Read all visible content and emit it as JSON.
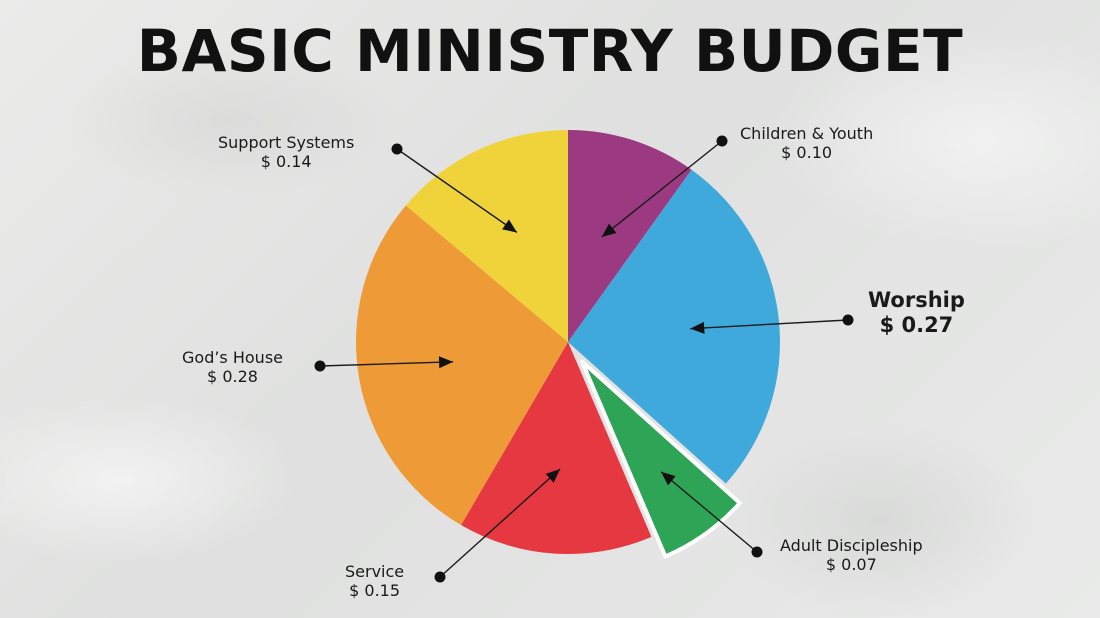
{
  "title": "BASIC MINISTRY BUDGET",
  "chart_data": {
    "type": "pie",
    "title": "BASIC MINISTRY BUDGET",
    "value_prefix": "$ ",
    "slices": [
      {
        "name": "Children & Youth",
        "value": 0.1,
        "value_label": "$ 0.10",
        "color": "#9b3a80",
        "emphasis": false
      },
      {
        "name": "Worship",
        "value": 0.27,
        "value_label": "$ 0.27",
        "color": "#3fa9dc",
        "emphasis": true
      },
      {
        "name": "Adult Discipleship",
        "value": 0.07,
        "value_label": "$ 0.07",
        "color": "#2ea556",
        "exploded": true,
        "emphasis": false
      },
      {
        "name": "Service",
        "value": 0.15,
        "value_label": "$ 0.15",
        "color": "#e53840",
        "emphasis": false
      },
      {
        "name": "God’s House",
        "value": 0.28,
        "value_label": "$ 0.28",
        "color": "#ee9a37",
        "emphasis": false
      },
      {
        "name": "Support Systems",
        "value": 0.14,
        "value_label": "$ 0.14",
        "color": "#f0d23a",
        "emphasis": false
      }
    ]
  }
}
